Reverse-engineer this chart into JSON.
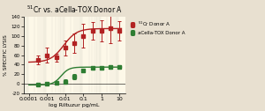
{
  "title": "$^{51}$Cr vs. aCella-TOX Donor A",
  "xlabel": "log Riltuzur pg/mL",
  "ylabel": "% SPECIFIC LYSIS",
  "background_color": "#fdf8e8",
  "outer_bg": "#e8e0d0",
  "xlim_log": [
    -4.3,
    1.3
  ],
  "ylim": [
    -20,
    140
  ],
  "yticks": [
    -20,
    0,
    20,
    40,
    60,
    80,
    100,
    120,
    140
  ],
  "xtick_labels": [
    "0.0001",
    "0.001",
    "0.01",
    "0.1",
    "1",
    "10"
  ],
  "xtick_vals": [
    -4,
    -3,
    -2,
    -1,
    0,
    1
  ],
  "cr51_color": "#b22222",
  "acella_color": "#2e7d32",
  "cr51_x": [
    -3.5,
    -3.0,
    -2.5,
    -2.0,
    -1.5,
    -1.0,
    -0.5,
    0.0,
    0.5,
    1.0
  ],
  "cr51_y": [
    50,
    60,
    55,
    75,
    85,
    100,
    110,
    110,
    115,
    110
  ],
  "cr51_yerr": [
    10,
    15,
    8,
    15,
    20,
    25,
    18,
    22,
    30,
    20
  ],
  "acella_x": [
    -3.5,
    -3.0,
    -2.5,
    -2.0,
    -1.5,
    -1.0,
    -0.5,
    0.0,
    0.5,
    1.0
  ],
  "acella_y": [
    -2,
    0,
    2,
    5,
    15,
    28,
    33,
    33,
    35,
    35
  ],
  "acella_yerr": [
    3,
    2,
    2,
    4,
    5,
    4,
    3,
    3,
    3,
    3
  ],
  "legend_cr51": "$^{51}$Cr Donor A",
  "legend_acella": "aCella-TOX Donor A",
  "cr51_ec50_log": -2.087,
  "acella_ec50_log": -2.23
}
